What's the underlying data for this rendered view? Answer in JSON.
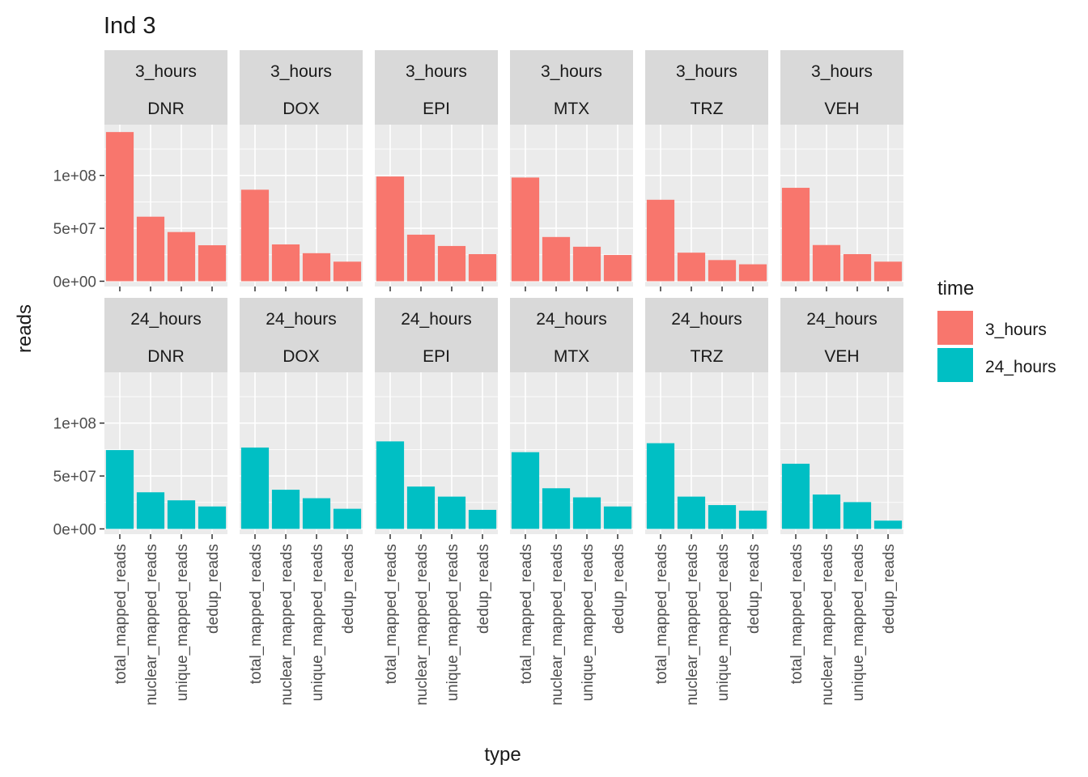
{
  "chart_data": {
    "type": "bar",
    "title": "Ind 3",
    "xlabel": "type",
    "ylabel": "reads",
    "categories": [
      "total_mapped_reads",
      "nuclear_mapped_reads",
      "unique_mapped_reads",
      "dedup_reads"
    ],
    "y_ticks": [
      {
        "value": 0,
        "label": "0e+00"
      },
      {
        "value": 50000000,
        "label": "5e+07"
      },
      {
        "value": 100000000,
        "label": "1e+08"
      }
    ],
    "ylim": [
      -5000000,
      148000000
    ],
    "grid": true,
    "legend": {
      "title": "time",
      "position": "right",
      "entries": [
        {
          "label": "3_hours",
          "color": "#F8766D"
        },
        {
          "label": "24_hours",
          "color": "#00BFC4"
        }
      ]
    },
    "facet_rows": [
      {
        "time": "3_hours",
        "color": "#F8766D",
        "panels": [
          {
            "drug": "DNR",
            "values": [
              141000000,
              61000000,
              46500000,
              34000000
            ]
          },
          {
            "drug": "DOX",
            "values": [
              86500000,
              34800000,
              26500000,
              18500000
            ]
          },
          {
            "drug": "EPI",
            "values": [
              99000000,
              44000000,
              33300000,
              25600000
            ]
          },
          {
            "drug": "MTX",
            "values": [
              98000000,
              41800000,
              32600000,
              24800000
            ]
          },
          {
            "drug": "TRZ",
            "values": [
              77000000,
              27000000,
              20000000,
              16000000
            ]
          },
          {
            "drug": "VEH",
            "values": [
              88300000,
              34200000,
              25600000,
              18500000
            ]
          }
        ]
      },
      {
        "time": "24_hours",
        "color": "#00BFC4",
        "panels": [
          {
            "drug": "DNR",
            "values": [
              74500000,
              34600000,
              27000000,
              21200000
            ]
          },
          {
            "drug": "DOX",
            "values": [
              76900000,
              37000000,
              29000000,
              19000000
            ]
          },
          {
            "drug": "EPI",
            "values": [
              82700000,
              40000000,
              30500000,
              18000000
            ]
          },
          {
            "drug": "MTX",
            "values": [
              72500000,
              38400000,
              29800000,
              21200000
            ]
          },
          {
            "drug": "TRZ",
            "values": [
              81000000,
              30500000,
              22500000,
              17300000
            ]
          },
          {
            "drug": "VEH",
            "values": [
              61600000,
              32500000,
              25300000,
              7800000
            ]
          }
        ]
      }
    ]
  }
}
